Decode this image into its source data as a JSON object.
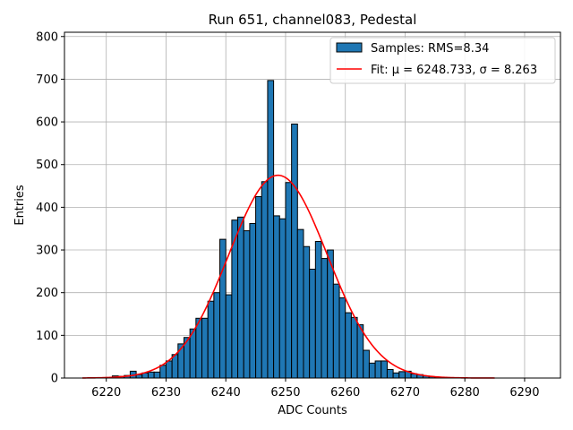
{
  "chart_data": {
    "type": "bar",
    "title": "Run 651, channel083, Pedestal",
    "xlabel": "ADC Counts",
    "ylabel": "Entries",
    "xlim": [
      6213,
      6296
    ],
    "ylim": [
      0,
      810
    ],
    "xticks": [
      6220,
      6230,
      6240,
      6250,
      6260,
      6270,
      6280,
      6290
    ],
    "yticks": [
      0,
      100,
      200,
      300,
      400,
      500,
      600,
      700,
      800
    ],
    "grid": true,
    "legend_position": "top-right",
    "histogram": {
      "name": "Samples: RMS=8.34",
      "color": "#1f77b4",
      "bin_width": 1,
      "bin_starts": [
        6221,
        6222,
        6223,
        6224,
        6225,
        6226,
        6227,
        6228,
        6229,
        6230,
        6231,
        6232,
        6233,
        6234,
        6235,
        6236,
        6237,
        6238,
        6239,
        6240,
        6241,
        6242,
        6243,
        6244,
        6245,
        6246,
        6247,
        6248,
        6249,
        6250,
        6251,
        6252,
        6253,
        6254,
        6255,
        6256,
        6257,
        6258,
        6259,
        6260,
        6261,
        6262,
        6263,
        6264,
        6265,
        6266,
        6267,
        6268,
        6269,
        6270,
        6271,
        6272,
        6273,
        6274,
        6275
      ],
      "counts": [
        5,
        4,
        6,
        16,
        8,
        12,
        14,
        14,
        30,
        40,
        55,
        80,
        95,
        115,
        140,
        140,
        180,
        200,
        325,
        195,
        370,
        377,
        345,
        362,
        425,
        460,
        697,
        380,
        373,
        458,
        595,
        348,
        308,
        255,
        320,
        280,
        300,
        220,
        188,
        153,
        142,
        125,
        65,
        35,
        40,
        40,
        20,
        12,
        15,
        16,
        10,
        8,
        5,
        3,
        2
      ]
    },
    "fit": {
      "name": "Fit: μ = 6248.733, σ = 8.263",
      "color": "#ff0000",
      "type": "gaussian",
      "mu": 6248.733,
      "sigma": 8.263,
      "amplitude": 475,
      "x_range": [
        6216,
        6285
      ]
    },
    "legend": [
      {
        "label": "Samples: RMS=8.34"
      },
      {
        "label": "Fit: μ = 6248.733, σ = 8.263"
      }
    ]
  }
}
